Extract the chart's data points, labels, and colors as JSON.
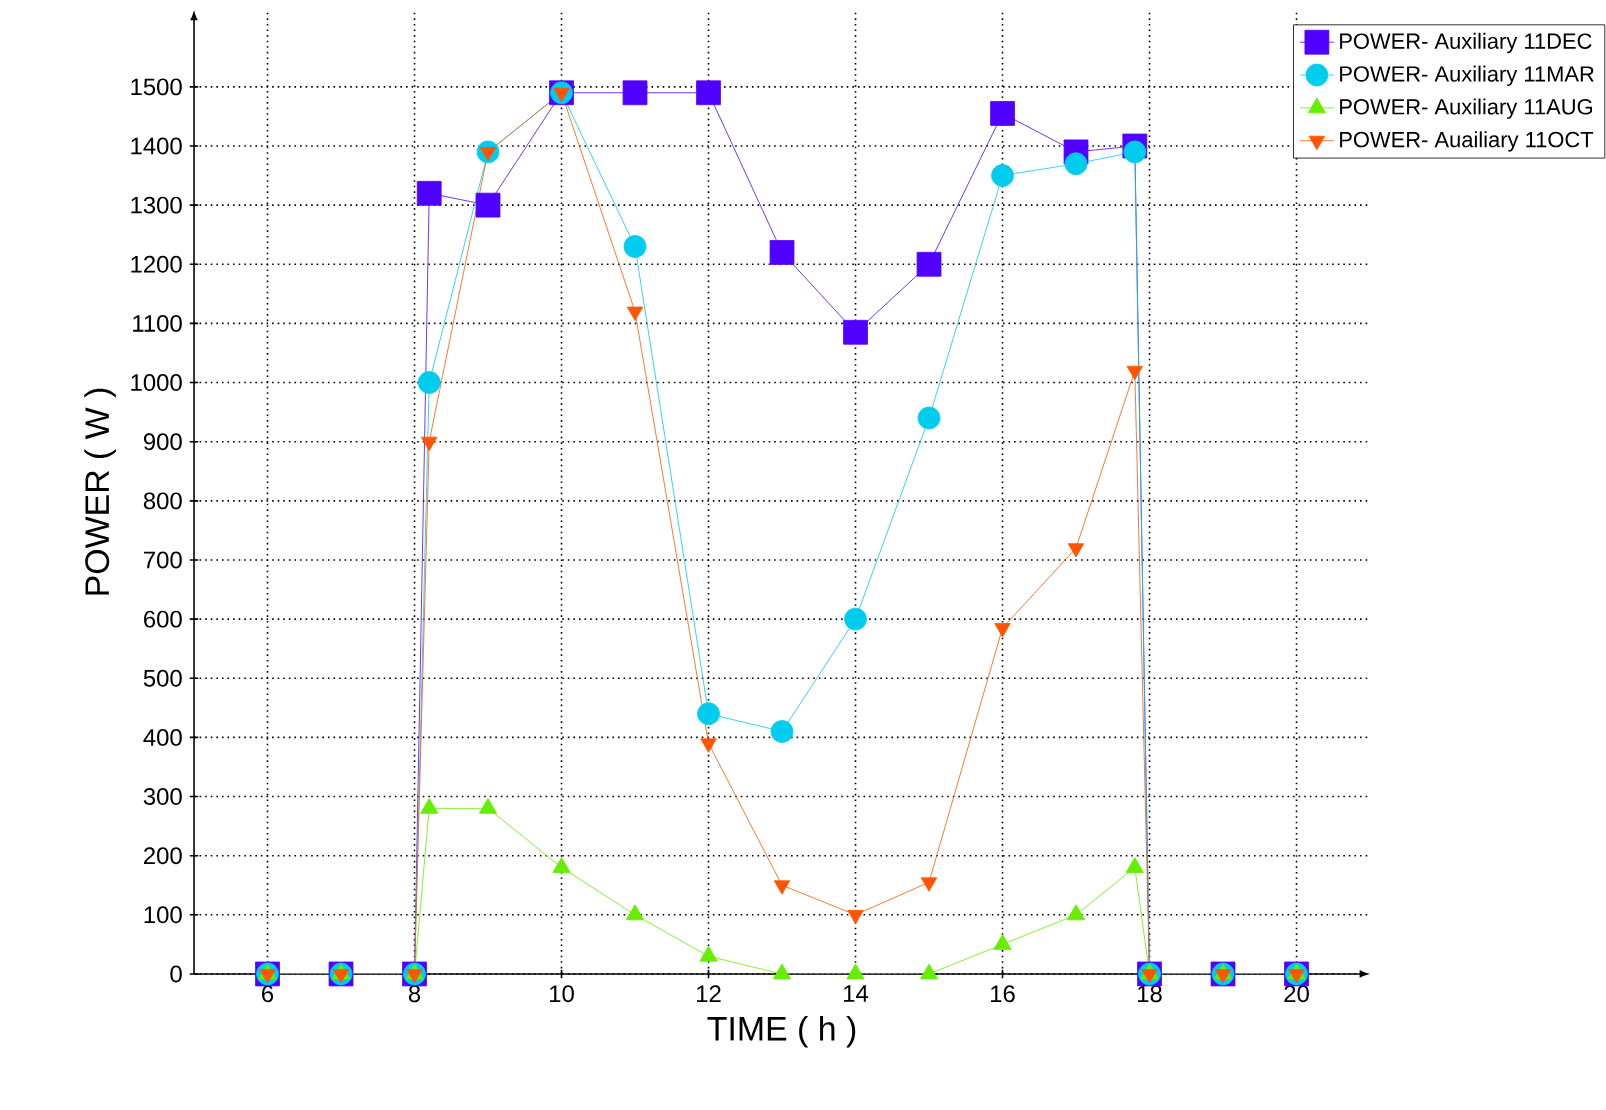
{
  "chart_data": {
    "type": "line",
    "xlabel": "TIME ( h )",
    "ylabel": "POWER ( W )",
    "x": [
      6,
      7,
      8,
      8.2,
      9,
      10,
      11,
      12,
      13,
      14,
      15,
      16,
      17,
      17.8,
      18,
      19,
      20
    ],
    "series": [
      {
        "name": "POWER- Auxiliary 11DEC",
        "color": "#5000ff",
        "marker": "square",
        "values": [
          0,
          0,
          0,
          1320,
          1300,
          1490,
          1490,
          1490,
          1220,
          1085,
          1200,
          1455,
          1390,
          1400,
          0,
          0,
          0
        ]
      },
      {
        "name": "POWER- Auxiliary 11MAR",
        "color": "#00ccee",
        "marker": "circle",
        "values": [
          0,
          0,
          0,
          1000,
          1390,
          1490,
          1230,
          440,
          410,
          600,
          940,
          1350,
          1370,
          1390,
          0,
          0,
          0
        ]
      },
      {
        "name": "POWER- Auxiliary 11AUG",
        "color": "#66ee00",
        "marker": "triangle",
        "values": [
          0,
          0,
          0,
          280,
          280,
          180,
          100,
          30,
          0,
          0,
          0,
          50,
          100,
          180,
          0,
          0,
          0
        ]
      },
      {
        "name": "POWER- Auailiary 11OCT",
        "color": "#ff5500",
        "marker": "triangle-down",
        "values": [
          0,
          0,
          0,
          900,
          1390,
          1490,
          1120,
          390,
          150,
          100,
          155,
          585,
          720,
          1020,
          0,
          0,
          0
        ]
      }
    ],
    "xlim": [
      5,
      21
    ],
    "ylim": [
      0,
      1630
    ],
    "xticks": [
      6,
      8,
      10,
      12,
      14,
      16,
      18,
      20
    ],
    "yticks": [
      0,
      100,
      200,
      300,
      400,
      500,
      600,
      700,
      800,
      900,
      1000,
      1100,
      1200,
      1300,
      1400,
      1500
    ],
    "grid": true,
    "legend": "top right",
    "line_style": "solid"
  }
}
